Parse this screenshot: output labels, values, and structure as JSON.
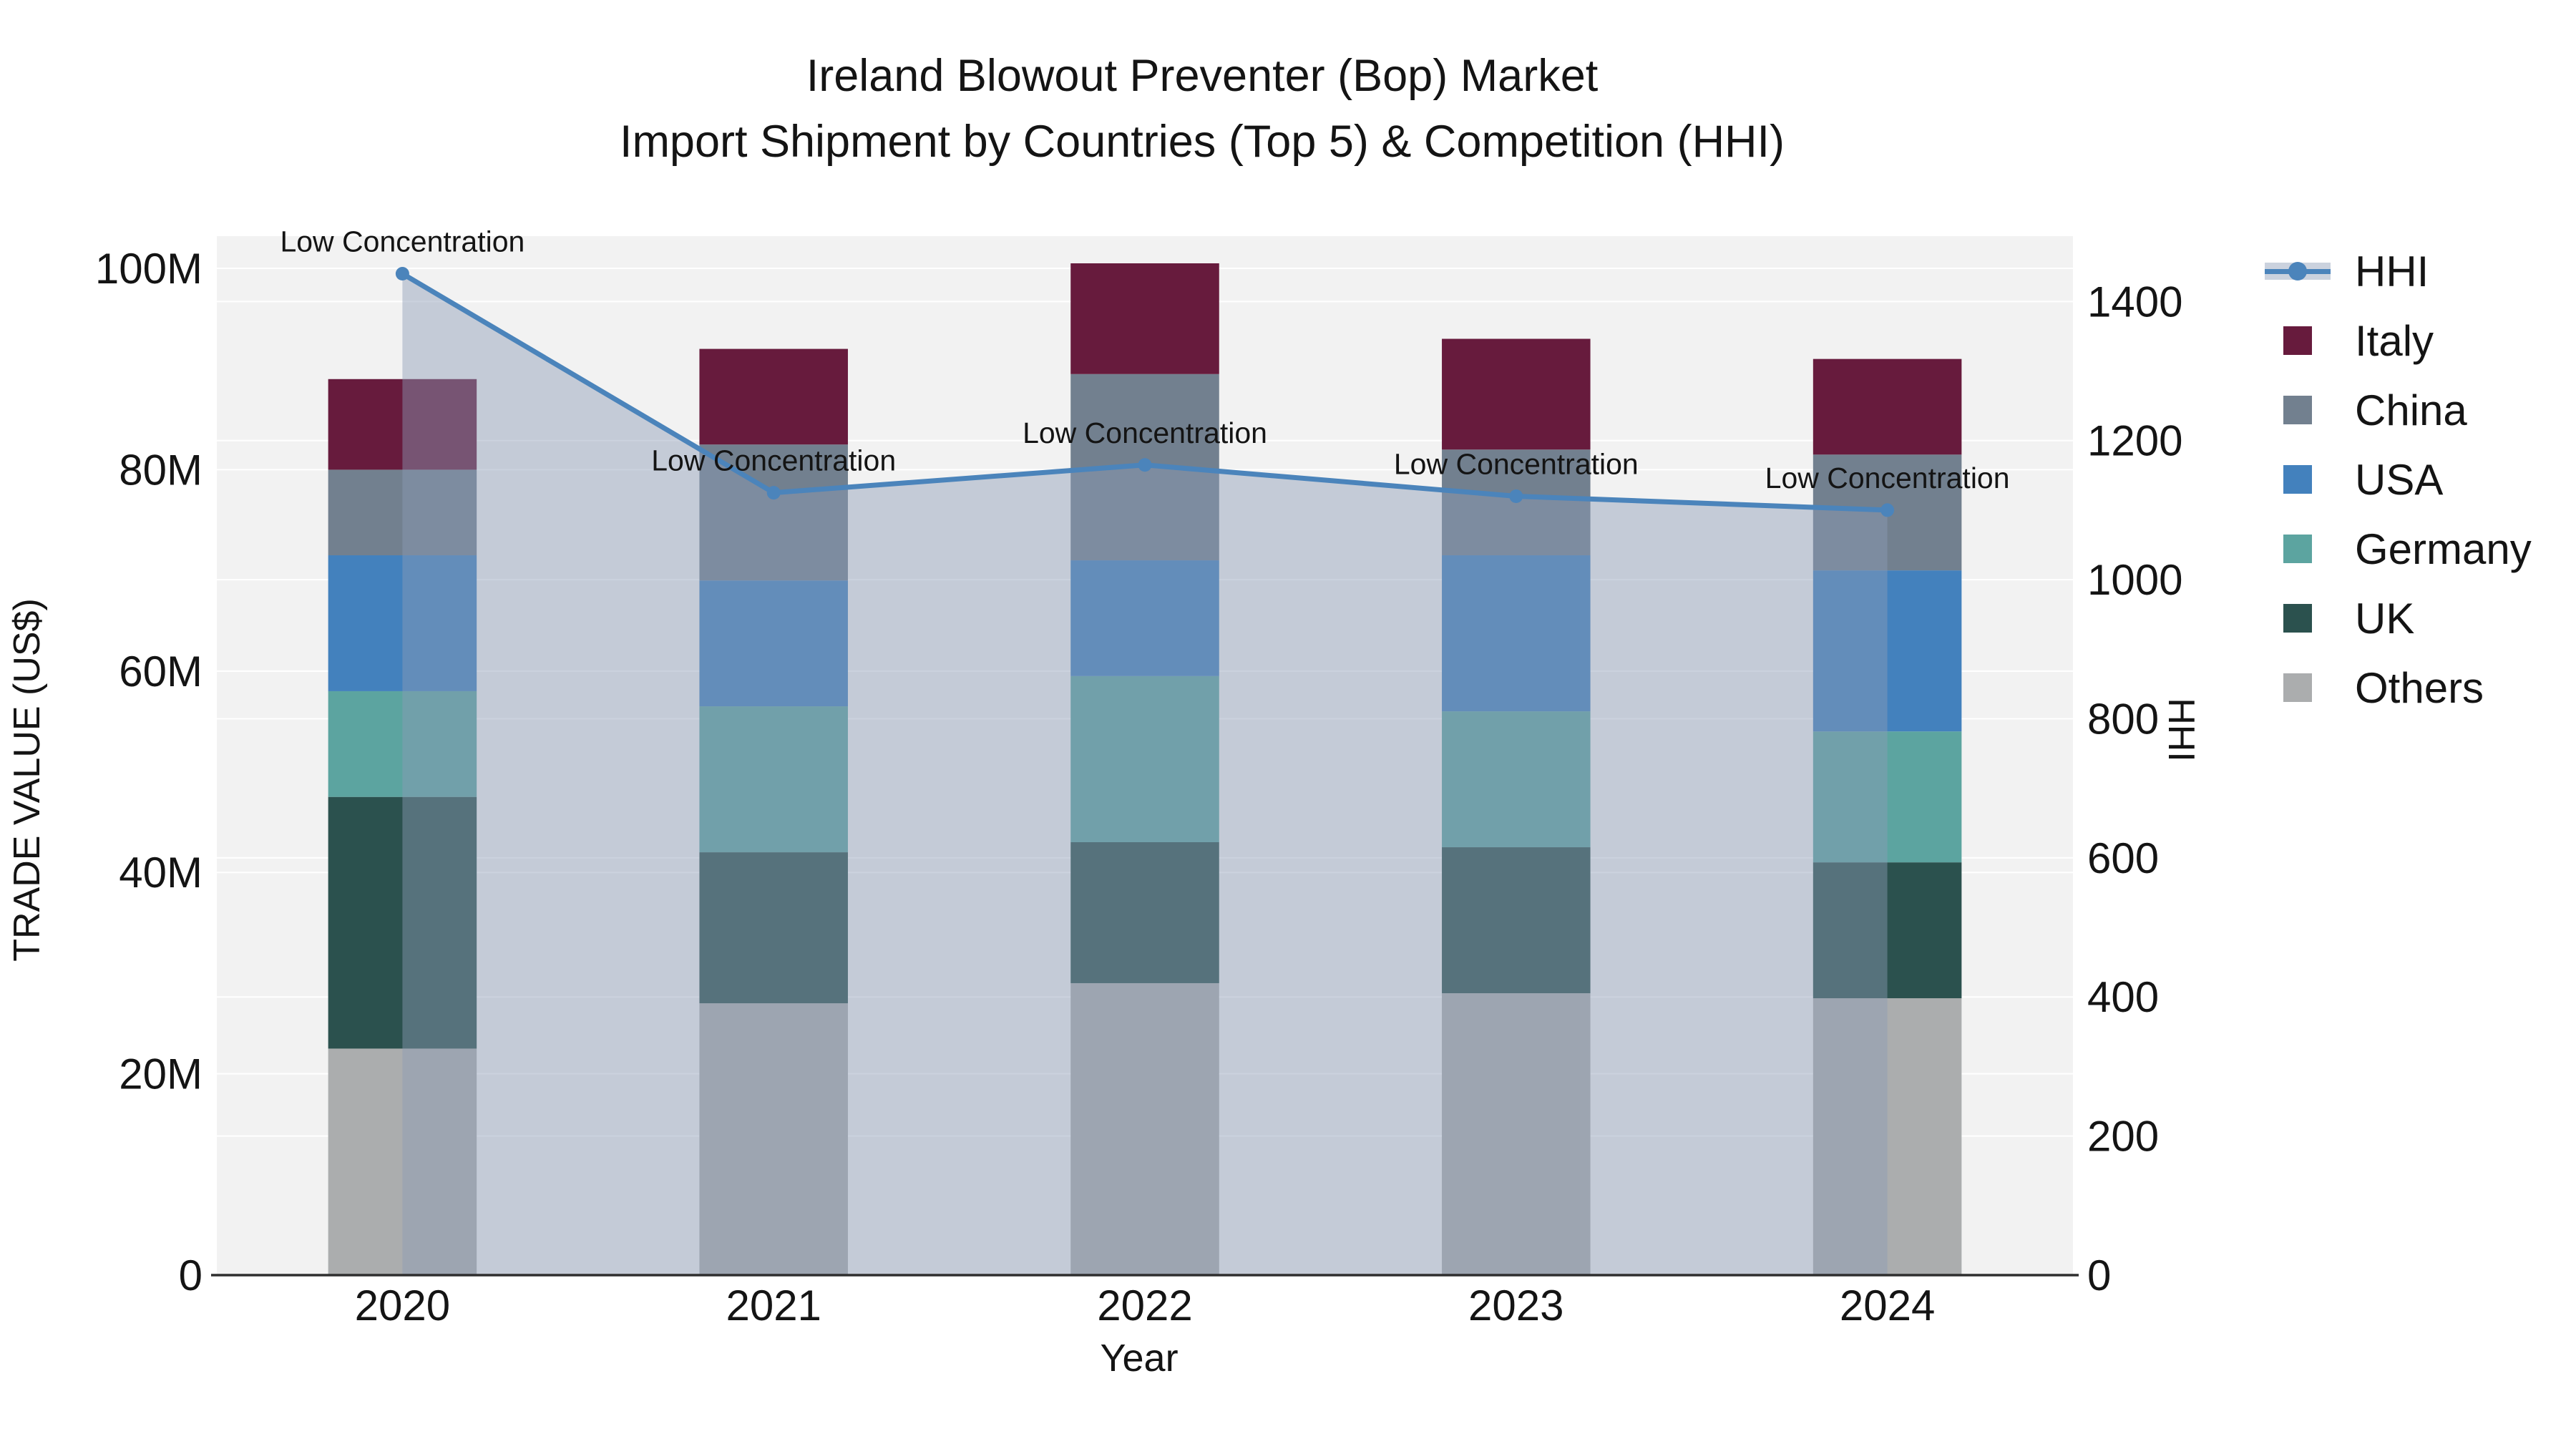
{
  "title": {
    "line1": "Ireland Blowout Preventer (Bop) Market",
    "line2": "Import Shipment by Countries (Top 5) & Competition (HHI)"
  },
  "axis_titles": {
    "left": "TRADE VALUE (US$)",
    "right": "HHI",
    "bottom": "Year"
  },
  "annotation_label": "Low Concentration",
  "colors": {
    "page_bg": "#ffffff",
    "plot_bg": "#f2f2f2",
    "grid": "#ffffff",
    "axis_line": "#2f2f2f",
    "text": "#141414",
    "hhi_line": "#4b84bb",
    "hhi_area_fill": "rgba(140,156,182,0.45)"
  },
  "legend": {
    "items": [
      {
        "label": "HHI",
        "type": "line",
        "color": "#4b84bb"
      },
      {
        "label": "Italy",
        "type": "square",
        "color": "#671b3d"
      },
      {
        "label": "China",
        "type": "square",
        "color": "#72808f"
      },
      {
        "label": "USA",
        "type": "square",
        "color": "#4381bd"
      },
      {
        "label": "Germany",
        "type": "square",
        "color": "#5ca4a0"
      },
      {
        "label": "UK",
        "type": "square",
        "color": "#2b514e"
      },
      {
        "label": "Others",
        "type": "square",
        "color": "#abadae"
      }
    ]
  },
  "chart_data": {
    "type": "bar",
    "subtype": "stacked bars + HHI line on secondary axis",
    "title": "Ireland Blowout Preventer (Bop) Market Import Shipment by Countries (Top 5) & Competition (HHI)",
    "categories": [
      "2020",
      "2021",
      "2022",
      "2023",
      "2024"
    ],
    "unit": "US$ millions",
    "series": [
      {
        "name": "Others",
        "color": "#abadae",
        "values": [
          22.5,
          27.0,
          29.0,
          28.0,
          27.5
        ]
      },
      {
        "name": "UK",
        "color": "#2b514e",
        "values": [
          25.0,
          15.0,
          14.0,
          14.5,
          13.5
        ]
      },
      {
        "name": "Germany",
        "color": "#5ca4a0",
        "values": [
          10.5,
          14.5,
          16.5,
          13.5,
          13.0
        ]
      },
      {
        "name": "USA",
        "color": "#4381bd",
        "values": [
          13.5,
          12.5,
          11.5,
          15.5,
          16.0
        ]
      },
      {
        "name": "China",
        "color": "#72808f",
        "values": [
          8.5,
          13.5,
          18.5,
          10.5,
          11.5
        ]
      },
      {
        "name": "Italy",
        "color": "#671b3d",
        "values": [
          9.0,
          9.5,
          11.0,
          11.0,
          9.5
        ]
      }
    ],
    "line_series": {
      "name": "HHI",
      "color": "#4b84bb",
      "values": [
        1440,
        1125,
        1165,
        1120,
        1100
      ],
      "annotations": [
        "Low Concentration",
        "Low Concentration",
        "Low Concentration",
        "Low Concentration",
        "Low Concentration"
      ]
    },
    "y_left": {
      "label": "TRADE VALUE (US$)",
      "ticks": [
        0,
        20,
        40,
        60,
        80,
        100
      ],
      "tick_labels": [
        "0",
        "20M",
        "40M",
        "60M",
        "80M",
        "100M"
      ],
      "max": 103.2
    },
    "y_right": {
      "label": "HHI",
      "ticks": [
        0,
        200,
        400,
        600,
        800,
        1000,
        1200,
        1400
      ],
      "tick_labels": [
        "0",
        "200",
        "400",
        "600",
        "800",
        "1000",
        "1200",
        "1400"
      ],
      "max": 1494
    },
    "xlabel": "Year",
    "legend_position": "right",
    "grid": true
  }
}
